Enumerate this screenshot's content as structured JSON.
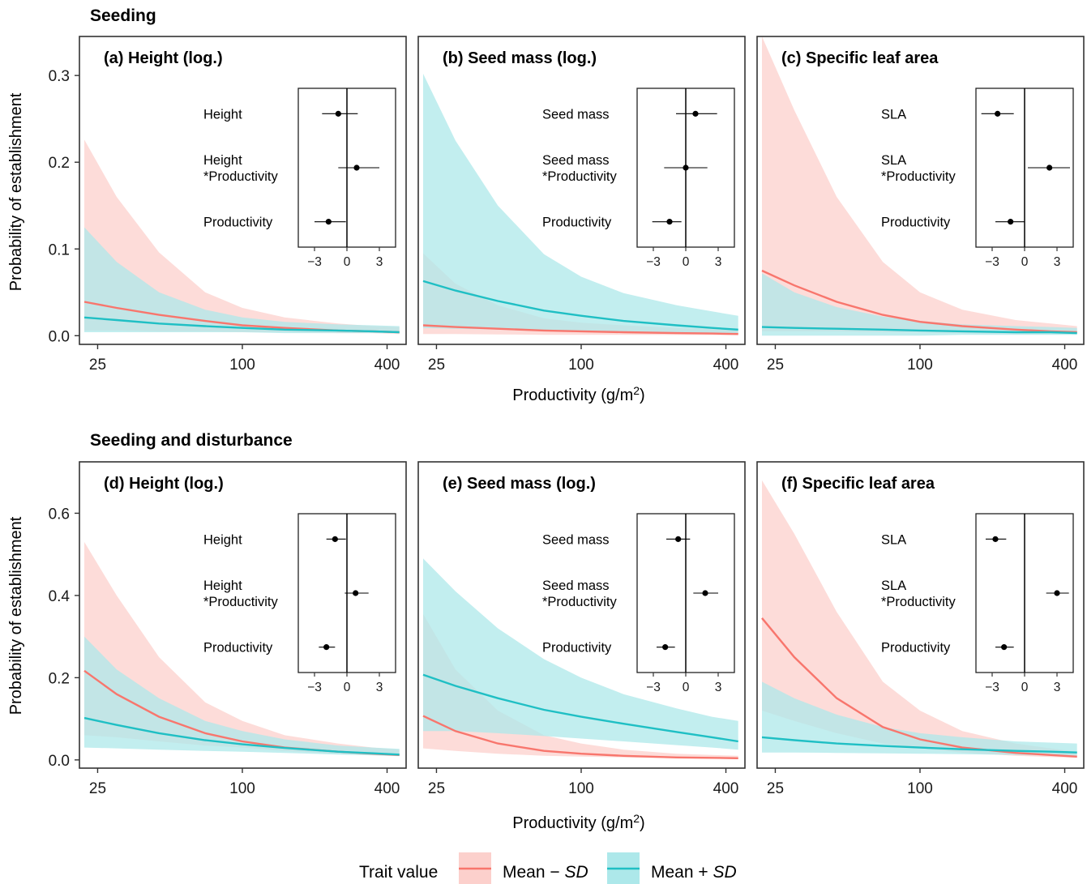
{
  "rows": [
    {
      "title": "Seeding"
    },
    {
      "title": "Seeding and disturbance"
    }
  ],
  "axes": {
    "ylabel": "Probability of establishment",
    "xlabel_main": "Productivity (g/m",
    "xlabel_sup": "2",
    "xlabel_close": ")",
    "x_ticks": [
      "25",
      "100",
      "400"
    ],
    "x_tick_values": [
      25,
      100,
      400
    ],
    "x_scale": "log",
    "x_range": [
      21,
      480
    ],
    "row_y_ranges": [
      [
        -0.01,
        0.345
      ],
      [
        -0.02,
        0.725
      ]
    ],
    "row_y_ticks": [
      [
        "0.0",
        "0.1",
        "0.2",
        "0.3"
      ],
      [
        "0.0",
        "0.2",
        "0.4",
        "0.6"
      ]
    ],
    "row_y_tick_values": [
      [
        0,
        0.1,
        0.2,
        0.3
      ],
      [
        0,
        0.2,
        0.4,
        0.6
      ]
    ]
  },
  "inset": {
    "ticks": [
      "−3",
      "0",
      "3"
    ],
    "tick_values": [
      -3,
      0,
      3
    ],
    "range": [
      -4.5,
      4.5
    ]
  },
  "legend": {
    "title": "Trait value",
    "minus_prefix": "Mean − ",
    "plus_prefix": "Mean + ",
    "sd": "SD"
  },
  "colors": {
    "minus_line": "#f8766d",
    "minus_band": "#fcd0cc",
    "plus_line": "#1fbfc4",
    "plus_band": "#ade8ea",
    "point": "#000000"
  },
  "chart_data": [
    {
      "type": "line",
      "title": "(a) Height (log.)",
      "xlabel": "Productivity (g/m2)",
      "ylabel": "Probability of establishment",
      "x": [
        22,
        30,
        45,
        70,
        100,
        150,
        250,
        350,
        450
      ],
      "ylim": [
        -0.01,
        0.345
      ],
      "series": [
        {
          "name": "Mean − SD",
          "values": [
            0.039,
            0.032,
            0.024,
            0.017,
            0.012,
            0.009,
            0.006,
            0.005,
            0.004
          ],
          "lower": [
            0.006,
            0.006,
            0.005,
            0.005,
            0.004,
            0.004,
            0.003,
            0.003,
            0.002
          ],
          "upper": [
            0.226,
            0.16,
            0.096,
            0.05,
            0.032,
            0.021,
            0.014,
            0.011,
            0.01
          ]
        },
        {
          "name": "Mean + SD",
          "values": [
            0.021,
            0.018,
            0.014,
            0.011,
            0.009,
            0.007,
            0.006,
            0.005,
            0.004
          ],
          "lower": [
            0.004,
            0.004,
            0.004,
            0.004,
            0.004,
            0.003,
            0.003,
            0.003,
            0.003
          ],
          "upper": [
            0.125,
            0.085,
            0.05,
            0.03,
            0.021,
            0.016,
            0.013,
            0.012,
            0.011
          ]
        }
      ],
      "coefficients": {
        "labels": [
          "Height",
          "Height\n*Productivity",
          "Productivity"
        ],
        "estimates": [
          -0.8,
          0.9,
          -1.7
        ],
        "ci_low": [
          -2.3,
          -0.8,
          -3.0
        ],
        "ci_high": [
          1.0,
          3.0,
          -0.1
        ]
      }
    },
    {
      "type": "line",
      "title": "(b) Seed mass (log.)",
      "xlabel": "Productivity (g/m2)",
      "ylabel": "Probability of establishment",
      "x": [
        22,
        30,
        45,
        70,
        100,
        150,
        250,
        350,
        450
      ],
      "ylim": [
        -0.01,
        0.345
      ],
      "series": [
        {
          "name": "Mean − SD",
          "values": [
            0.012,
            0.01,
            0.008,
            0.006,
            0.005,
            0.004,
            0.003,
            0.0025,
            0.002
          ],
          "lower": [
            0.002,
            0.002,
            0.0015,
            0.001,
            0.001,
            0.001,
            0.0008,
            0.0007,
            0.0006
          ],
          "upper": [
            0.095,
            0.06,
            0.035,
            0.02,
            0.015,
            0.012,
            0.009,
            0.008,
            0.007
          ]
        },
        {
          "name": "Mean + SD",
          "values": [
            0.063,
            0.052,
            0.04,
            0.029,
            0.023,
            0.017,
            0.012,
            0.009,
            0.007
          ],
          "lower": [
            0.009,
            0.008,
            0.007,
            0.006,
            0.005,
            0.004,
            0.003,
            0.003,
            0.002
          ],
          "upper": [
            0.302,
            0.225,
            0.15,
            0.094,
            0.068,
            0.049,
            0.035,
            0.028,
            0.023
          ]
        }
      ],
      "coefficients": {
        "labels": [
          "Seed mass",
          "Seed mass\n*Productivity",
          "Productivity"
        ],
        "estimates": [
          0.9,
          0.0,
          -1.5
        ],
        "ci_low": [
          -0.9,
          -2.0,
          -3.1
        ],
        "ci_high": [
          2.9,
          2.0,
          -0.4
        ]
      }
    },
    {
      "type": "line",
      "title": "(c) Specific leaf area",
      "xlabel": "Productivity (g/m2)",
      "ylabel": "Probability of establishment",
      "x": [
        22,
        30,
        45,
        70,
        100,
        150,
        250,
        350,
        450
      ],
      "ylim": [
        -0.01,
        0.345
      ],
      "series": [
        {
          "name": "Mean − SD",
          "values": [
            0.075,
            0.058,
            0.039,
            0.024,
            0.016,
            0.011,
            0.007,
            0.005,
            0.004
          ],
          "lower": [
            0.005,
            0.005,
            0.005,
            0.004,
            0.004,
            0.003,
            0.002,
            0.002,
            0.002
          ],
          "upper": [
            0.345,
            0.26,
            0.16,
            0.085,
            0.05,
            0.03,
            0.018,
            0.014,
            0.011
          ]
        },
        {
          "name": "Mean + SD",
          "values": [
            0.01,
            0.009,
            0.008,
            0.007,
            0.006,
            0.005,
            0.004,
            0.004,
            0.003
          ],
          "lower": [
            0.0,
            0.0,
            0.0,
            0.0,
            0.0,
            0.001,
            0.001,
            0.001,
            0.001
          ],
          "upper": [
            0.072,
            0.05,
            0.033,
            0.022,
            0.017,
            0.013,
            0.011,
            0.01,
            0.009
          ]
        }
      ],
      "coefficients": {
        "labels": [
          "SLA",
          "SLA\n*Productivity",
          "Productivity"
        ],
        "estimates": [
          -2.5,
          2.3,
          -1.3
        ],
        "ci_low": [
          -4.0,
          0.3,
          -2.7
        ],
        "ci_high": [
          -1.0,
          4.2,
          0.0
        ]
      }
    },
    {
      "type": "line",
      "title": "(d) Height (log.)",
      "xlabel": "Productivity (g/m2)",
      "ylabel": "Probability of establishment",
      "x": [
        22,
        30,
        45,
        70,
        100,
        150,
        250,
        350,
        450
      ],
      "ylim": [
        -0.02,
        0.725
      ],
      "series": [
        {
          "name": "Mean − SD",
          "values": [
            0.217,
            0.16,
            0.105,
            0.065,
            0.045,
            0.03,
            0.02,
            0.015,
            0.012
          ],
          "lower": [
            0.06,
            0.055,
            0.045,
            0.035,
            0.03,
            0.022,
            0.015,
            0.012,
            0.01
          ],
          "upper": [
            0.53,
            0.4,
            0.25,
            0.14,
            0.095,
            0.06,
            0.04,
            0.03,
            0.025
          ]
        },
        {
          "name": "Mean + SD",
          "values": [
            0.102,
            0.085,
            0.065,
            0.048,
            0.038,
            0.029,
            0.02,
            0.016,
            0.013
          ],
          "lower": [
            0.03,
            0.028,
            0.025,
            0.022,
            0.02,
            0.017,
            0.013,
            0.011,
            0.009
          ],
          "upper": [
            0.3,
            0.22,
            0.15,
            0.095,
            0.07,
            0.05,
            0.035,
            0.03,
            0.027
          ]
        }
      ],
      "coefficients": {
        "labels": [
          "Height",
          "Height\n*Productivity",
          "Productivity"
        ],
        "estimates": [
          -1.1,
          0.8,
          -1.9
        ],
        "ci_low": [
          -1.9,
          -0.2,
          -2.6
        ],
        "ci_high": [
          -0.1,
          2.0,
          -1.1
        ]
      }
    },
    {
      "type": "line",
      "title": "(e) Seed mass (log.)",
      "xlabel": "Productivity (g/m2)",
      "ylabel": "Probability of establishment",
      "x": [
        22,
        30,
        45,
        70,
        100,
        150,
        250,
        350,
        450
      ],
      "ylim": [
        -0.02,
        0.725
      ],
      "series": [
        {
          "name": "Mean − SD",
          "values": [
            0.107,
            0.07,
            0.04,
            0.022,
            0.015,
            0.01,
            0.006,
            0.005,
            0.004
          ],
          "lower": [
            0.028,
            0.022,
            0.015,
            0.01,
            0.008,
            0.006,
            0.004,
            0.003,
            0.002
          ],
          "upper": [
            0.355,
            0.22,
            0.12,
            0.06,
            0.04,
            0.025,
            0.015,
            0.012,
            0.01
          ]
        },
        {
          "name": "Mean + SD",
          "values": [
            0.207,
            0.18,
            0.15,
            0.122,
            0.105,
            0.088,
            0.068,
            0.055,
            0.045
          ],
          "lower": [
            0.07,
            0.07,
            0.065,
            0.058,
            0.052,
            0.045,
            0.036,
            0.03,
            0.025
          ],
          "upper": [
            0.49,
            0.41,
            0.32,
            0.245,
            0.2,
            0.16,
            0.125,
            0.105,
            0.095
          ]
        }
      ],
      "coefficients": {
        "labels": [
          "Seed mass",
          "Seed mass\n*Productivity",
          "Productivity"
        ],
        "estimates": [
          -0.7,
          1.8,
          -1.9
        ],
        "ci_low": [
          -1.8,
          0.7,
          -2.7
        ],
        "ci_high": [
          0.4,
          3.0,
          -1.0
        ]
      }
    },
    {
      "type": "line",
      "title": "(f) Specific leaf area",
      "xlabel": "Productivity (g/m2)",
      "ylabel": "Probability of establishment",
      "x": [
        22,
        30,
        45,
        70,
        100,
        150,
        250,
        350,
        450
      ],
      "ylim": [
        -0.02,
        0.725
      ],
      "series": [
        {
          "name": "Mean − SD",
          "values": [
            0.345,
            0.25,
            0.15,
            0.08,
            0.05,
            0.03,
            0.017,
            0.012,
            0.008
          ],
          "lower": [
            0.12,
            0.095,
            0.065,
            0.04,
            0.028,
            0.018,
            0.01,
            0.007,
            0.005
          ],
          "upper": [
            0.68,
            0.55,
            0.36,
            0.19,
            0.12,
            0.07,
            0.04,
            0.028,
            0.02
          ]
        },
        {
          "name": "Mean + SD",
          "values": [
            0.055,
            0.048,
            0.04,
            0.034,
            0.03,
            0.026,
            0.022,
            0.02,
            0.018
          ],
          "lower": [
            0.018,
            0.018,
            0.017,
            0.016,
            0.015,
            0.014,
            0.012,
            0.011,
            0.01
          ],
          "upper": [
            0.19,
            0.15,
            0.11,
            0.08,
            0.065,
            0.055,
            0.045,
            0.042,
            0.04
          ]
        }
      ],
      "coefficients": {
        "labels": [
          "SLA",
          "SLA\n*Productivity",
          "Productivity"
        ],
        "estimates": [
          -2.7,
          3.0,
          -1.9
        ],
        "ci_low": [
          -3.6,
          2.0,
          -2.7
        ],
        "ci_high": [
          -1.7,
          4.1,
          -1.0
        ]
      }
    }
  ]
}
